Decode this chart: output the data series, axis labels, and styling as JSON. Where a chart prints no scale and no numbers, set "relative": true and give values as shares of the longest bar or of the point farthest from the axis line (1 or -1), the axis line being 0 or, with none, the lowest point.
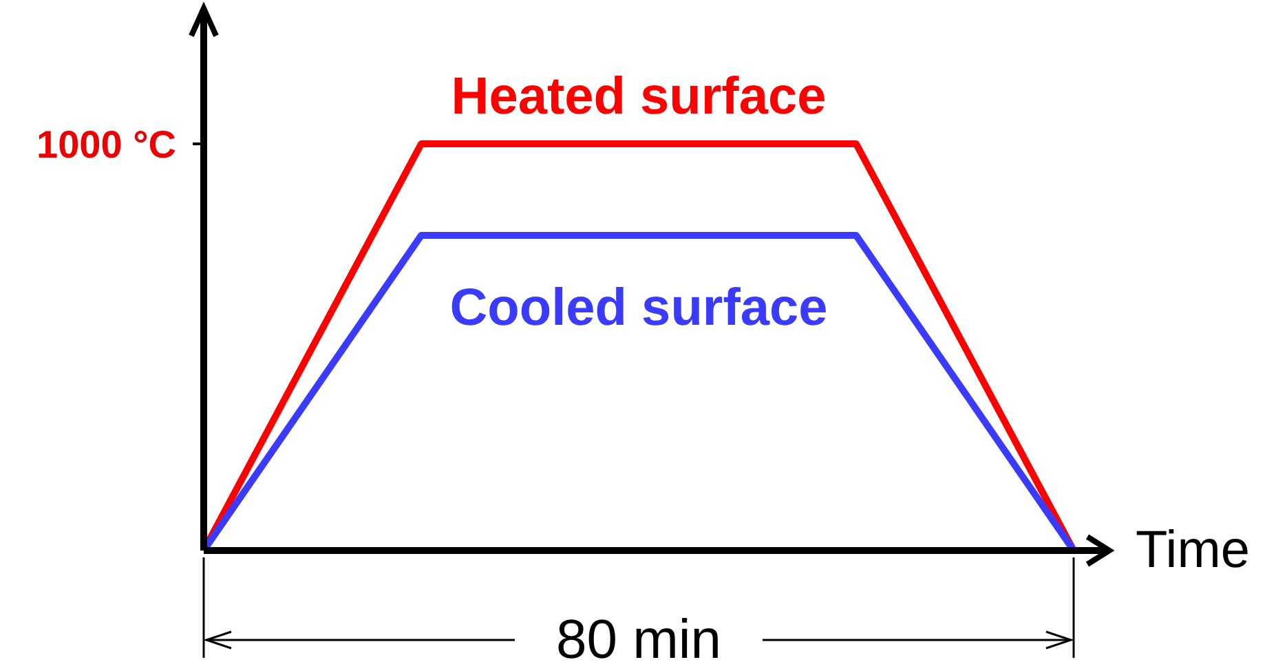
{
  "chart_data": {
    "type": "line",
    "xlabel": "Time",
    "categories": [
      null,
      null,
      null,
      null,
      null
    ],
    "relative": true,
    "marker": "none",
    "line_style": "solid",
    "series": [
      {
        "name": "Heated surface",
        "color": "#ff0000",
        "values": [
          0,
          1,
          1,
          1,
          0
        ]
      },
      {
        "name": "Cooled surface",
        "color": "#3b3bff",
        "values": [
          0,
          0.775,
          0.775,
          0.775,
          0
        ]
      }
    ],
    "annotations": [
      "1000 °C",
      "80 min"
    ]
  }
}
